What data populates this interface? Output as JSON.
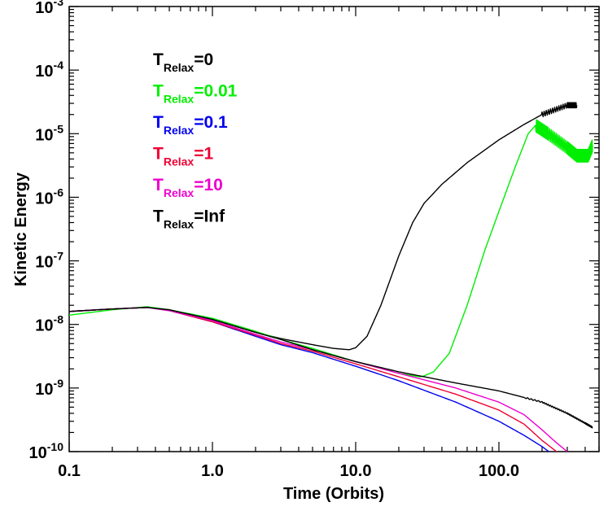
{
  "chart_data": {
    "type": "line",
    "xlabel": "Time (Orbits)",
    "ylabel": "Kinetic Energy",
    "xscale": "log",
    "yscale": "log",
    "xlim": [
      0.1,
      500
    ],
    "ylim": [
      1e-10,
      0.001
    ],
    "grid": false,
    "legend_placement": "top-left",
    "x_ticks": [
      {
        "value": 0.1,
        "label": "0.1"
      },
      {
        "value": 1,
        "label": "1.0"
      },
      {
        "value": 10,
        "label": "10.0"
      },
      {
        "value": 100,
        "label": "100.0"
      }
    ],
    "y_ticks": [
      {
        "value": 1e-10,
        "base": "10",
        "exp": "-10"
      },
      {
        "value": 1e-09,
        "base": "10",
        "exp": "-9"
      },
      {
        "value": 1e-08,
        "base": "10",
        "exp": "-8"
      },
      {
        "value": 1e-07,
        "base": "10",
        "exp": "-7"
      },
      {
        "value": 1e-06,
        "base": "10",
        "exp": "-6"
      },
      {
        "value": 1e-05,
        "base": "10",
        "exp": "-5"
      },
      {
        "value": 0.0001,
        "base": "10",
        "exp": "-4"
      },
      {
        "value": 0.001,
        "base": "10",
        "exp": "-3"
      }
    ],
    "series": [
      {
        "name": "T_Relax=0",
        "label_main": "T",
        "label_sub": "Relax",
        "label_value": "=0",
        "color": "#000000",
        "wiggle": 0.08,
        "wiggle_from": 200,
        "points": [
          [
            0.1,
            1.6e-08
          ],
          [
            0.2,
            1.75e-08
          ],
          [
            0.35,
            1.85e-08
          ],
          [
            0.5,
            1.7e-08
          ],
          [
            1,
            1.2e-08
          ],
          [
            2,
            7.5e-09
          ],
          [
            3,
            6e-09
          ],
          [
            5,
            4.8e-09
          ],
          [
            7,
            4.2e-09
          ],
          [
            9,
            4e-09
          ],
          [
            10,
            4.3e-09
          ],
          [
            12,
            6.5e-09
          ],
          [
            15,
            2e-08
          ],
          [
            20,
            1.2e-07
          ],
          [
            25,
            4e-07
          ],
          [
            30,
            8e-07
          ],
          [
            40,
            1.6e-06
          ],
          [
            60,
            3.5e-06
          ],
          [
            100,
            8e-06
          ],
          [
            150,
            1.4e-05
          ],
          [
            200,
            2e-05
          ],
          [
            300,
            2.8e-05
          ],
          [
            350,
            2.8e-05
          ]
        ]
      },
      {
        "name": "T_Relax=0.01",
        "label_main": "T",
        "label_sub": "Relax",
        "label_value": "=0.01",
        "color": "#00ee00",
        "wiggle": 0.2,
        "wiggle_from": 180,
        "points": [
          [
            0.1,
            1.4e-08
          ],
          [
            0.2,
            1.7e-08
          ],
          [
            0.35,
            1.9e-08
          ],
          [
            0.5,
            1.7e-08
          ],
          [
            1,
            1.25e-08
          ],
          [
            2,
            7.8e-09
          ],
          [
            3,
            5.8e-09
          ],
          [
            5,
            4.2e-09
          ],
          [
            10,
            2.6e-09
          ],
          [
            20,
            1.7e-09
          ],
          [
            28,
            1.5e-09
          ],
          [
            30,
            1.55e-09
          ],
          [
            35,
            1.8e-09
          ],
          [
            45,
            3.5e-09
          ],
          [
            60,
            2e-08
          ],
          [
            80,
            1.5e-07
          ],
          [
            100,
            6e-07
          ],
          [
            130,
            3e-06
          ],
          [
            160,
            1e-05
          ],
          [
            180,
            1.35e-05
          ],
          [
            220,
            1e-05
          ],
          [
            300,
            6e-06
          ],
          [
            350,
            4.5e-06
          ],
          [
            420,
            4.5e-06
          ],
          [
            450,
            6.5e-06
          ]
        ]
      },
      {
        "name": "T_Relax=0.1",
        "label_main": "T",
        "label_sub": "Relax",
        "label_value": "=0.1",
        "color": "#0000ee",
        "wiggle": 0,
        "wiggle_from": 1000,
        "points": [
          [
            0.1,
            1.6e-08
          ],
          [
            0.2,
            1.75e-08
          ],
          [
            0.35,
            1.85e-08
          ],
          [
            0.5,
            1.65e-08
          ],
          [
            1,
            1.1e-08
          ],
          [
            2,
            6.5e-09
          ],
          [
            3,
            4.8e-09
          ],
          [
            5,
            3.6e-09
          ],
          [
            10,
            2.2e-09
          ],
          [
            20,
            1.3e-09
          ],
          [
            50,
            6e-10
          ],
          [
            100,
            3e-10
          ],
          [
            150,
            1.8e-10
          ],
          [
            200,
            1.2e-10
          ],
          [
            230,
            9.5e-11
          ]
        ]
      },
      {
        "name": "T_Relax=1",
        "label_main": "T",
        "label_sub": "Relax",
        "label_value": "=1",
        "color": "#ee0033",
        "wiggle": 0,
        "wiggle_from": 1000,
        "points": [
          [
            0.1,
            1.6e-08
          ],
          [
            0.2,
            1.75e-08
          ],
          [
            0.35,
            1.85e-08
          ],
          [
            0.5,
            1.65e-08
          ],
          [
            1,
            1.1e-08
          ],
          [
            2,
            6.8e-09
          ],
          [
            3,
            5e-09
          ],
          [
            5,
            3.8e-09
          ],
          [
            10,
            2.4e-09
          ],
          [
            20,
            1.5e-09
          ],
          [
            50,
            8e-10
          ],
          [
            100,
            4.5e-10
          ],
          [
            150,
            2.7e-10
          ],
          [
            200,
            1.5e-10
          ],
          [
            260,
            9.5e-11
          ]
        ]
      },
      {
        "name": "T_Relax=10",
        "label_main": "T",
        "label_sub": "Relax",
        "label_value": "=10",
        "color": "#ee00cc",
        "wiggle": 0,
        "wiggle_from": 1000,
        "points": [
          [
            0.1,
            1.6e-08
          ],
          [
            0.2,
            1.75e-08
          ],
          [
            0.35,
            1.85e-08
          ],
          [
            0.5,
            1.65e-08
          ],
          [
            1,
            1.15e-08
          ],
          [
            2,
            7e-09
          ],
          [
            3,
            5.3e-09
          ],
          [
            5,
            4e-09
          ],
          [
            10,
            2.6e-09
          ],
          [
            20,
            1.7e-09
          ],
          [
            50,
            1e-09
          ],
          [
            100,
            6e-10
          ],
          [
            150,
            3.8e-10
          ],
          [
            200,
            2.2e-10
          ],
          [
            250,
            1.4e-10
          ],
          [
            300,
            1e-10
          ]
        ]
      },
      {
        "name": "T_Relax=Inf",
        "label_main": "T",
        "label_sub": "Relax",
        "label_value": "=Inf",
        "color": "#000000",
        "wiggle": 0.02,
        "wiggle_from": 150,
        "points": [
          [
            0.1,
            1.6e-08
          ],
          [
            0.2,
            1.75e-08
          ],
          [
            0.35,
            1.85e-08
          ],
          [
            0.5,
            1.7e-08
          ],
          [
            1,
            1.2e-08
          ],
          [
            2,
            7.5e-09
          ],
          [
            3,
            5.8e-09
          ],
          [
            5,
            4e-09
          ],
          [
            10,
            2.6e-09
          ],
          [
            20,
            1.8e-09
          ],
          [
            50,
            1.2e-09
          ],
          [
            100,
            9e-10
          ],
          [
            200,
            6e-10
          ],
          [
            300,
            4e-10
          ],
          [
            400,
            2.8e-10
          ],
          [
            450,
            2.4e-10
          ]
        ]
      }
    ]
  }
}
